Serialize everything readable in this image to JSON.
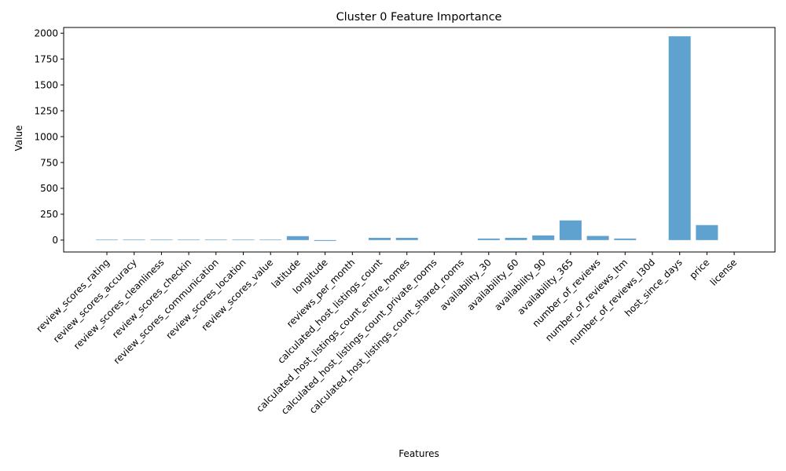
{
  "chart_data": {
    "type": "bar",
    "title": "Cluster 0 Feature Importance",
    "xlabel": "Features",
    "ylabel": "Value",
    "ylim": [
      -115,
      2055
    ],
    "yticks": [
      0,
      250,
      500,
      750,
      1000,
      1250,
      1500,
      1750,
      2000
    ],
    "grid": false,
    "color": "#5fa2d0",
    "categories": [
      "review_scores_rating",
      "review_scores_accuracy",
      "review_scores_cleanliness",
      "review_scores_checkin",
      "review_scores_communication",
      "review_scores_location",
      "review_scores_value",
      "latitude",
      "longitude",
      "reviews_per_month",
      "calculated_host_listings_count",
      "calculated_host_listings_count_entire_homes",
      "calculated_host_listings_count_private_rooms",
      "calculated_host_listings_count_shared_rooms",
      "availability_30",
      "availability_60",
      "availability_90",
      "availability_365",
      "number_of_reviews",
      "number_of_reviews_ltm",
      "number_of_reviews_l30d",
      "host_since_days",
      "price",
      "license"
    ],
    "values": [
      5,
      5,
      5,
      5,
      5,
      5,
      5,
      38,
      -8,
      0,
      22,
      22,
      0,
      0,
      15,
      22,
      45,
      190,
      40,
      15,
      0,
      1970,
      145,
      0
    ]
  }
}
